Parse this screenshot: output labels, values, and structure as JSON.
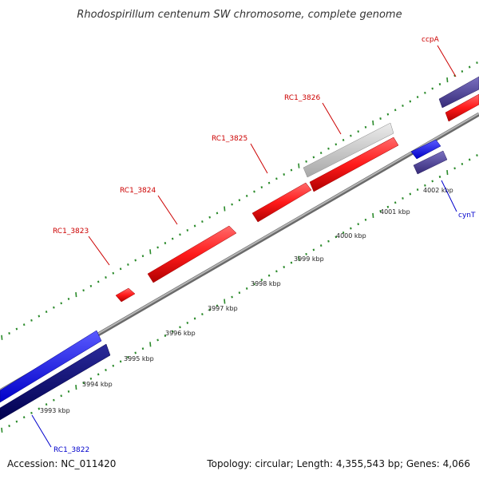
{
  "title": "Rhodospirillum centenum SW chromosome, complete genome",
  "accession": "Accession: NC_011420",
  "topology": "Topology: circular; Length: 4,355,543 bp; Genes: 4,066",
  "colors": {
    "forward_gene": "#ff1a1a",
    "forward_gene_alt": "#c0c0c0",
    "reverse_gene": "#1a1aff",
    "reverse_gene_dark": "#0a0a7a",
    "reverse_gene_muted": "#4a3f96",
    "backbone": "#8c8c8c",
    "tick": "#2a8a2a",
    "forward_label": "#cc0000",
    "reverse_label": "#0000cc"
  },
  "scale_labels": [
    "3993 kbp",
    "3994 kbp",
    "3995 kbp",
    "3996 kbp",
    "3997 kbp",
    "3998 kbp",
    "3999 kbp",
    "4000 kbp",
    "4001 kbp",
    "4002 kbp"
  ],
  "genes_forward": [
    {
      "label": "RC1_3823",
      "color": "forward_gene"
    },
    {
      "label": "RC1_3824",
      "color": "forward_gene"
    },
    {
      "label": "RC1_3825",
      "color": "forward_gene"
    },
    {
      "label": "RC1_3826",
      "color": "forward_gene_alt"
    },
    {
      "label": "ccpA",
      "color": "forward_gene"
    }
  ],
  "genes_reverse": [
    {
      "label": "RC1_3822",
      "color": "reverse_gene"
    },
    {
      "label": "cynT",
      "color": "reverse_gene_muted"
    }
  ]
}
